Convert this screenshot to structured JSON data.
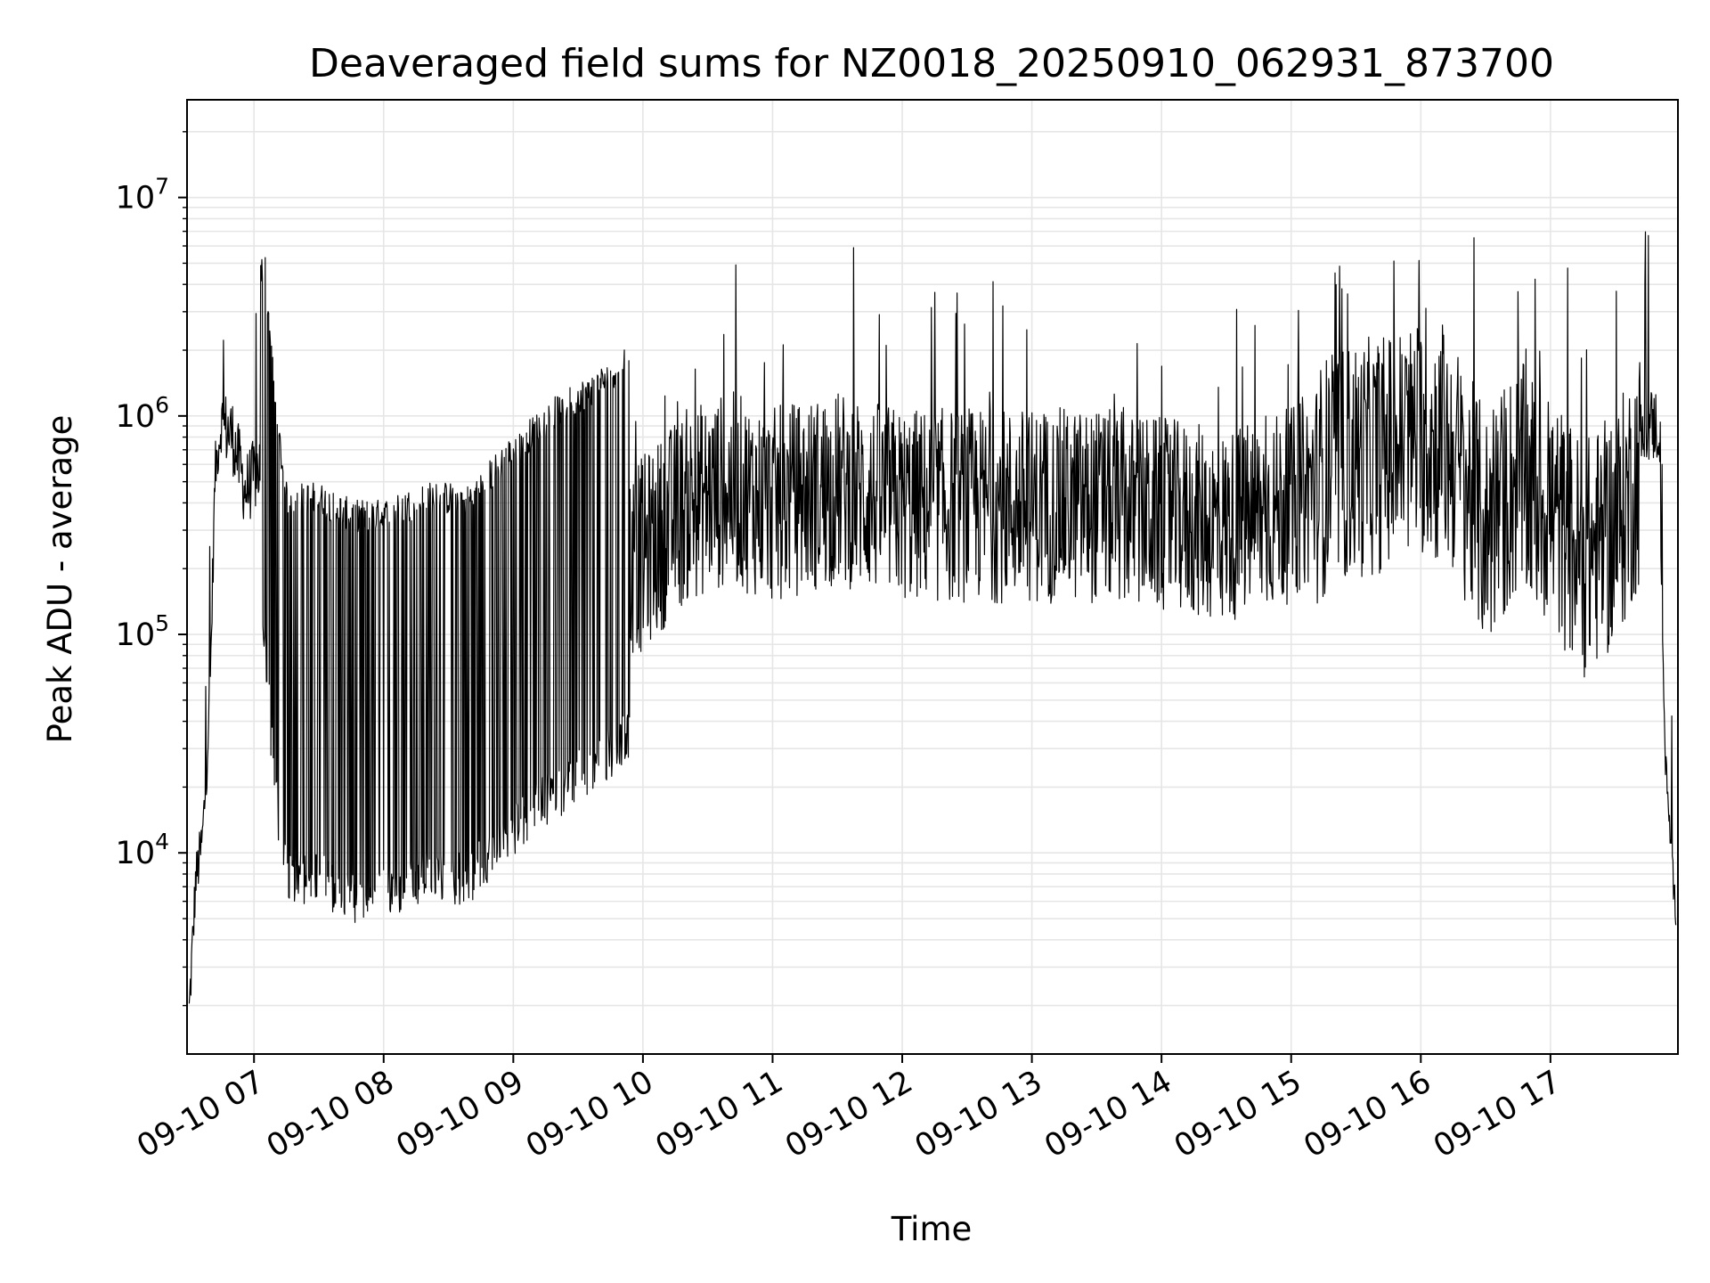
{
  "chart_data": {
    "type": "line",
    "title": "Deaveraged field sums for NZ0018_20250910_062931_873700",
    "xlabel": "Time",
    "ylabel": "Peak ADU - average",
    "yscale": "log",
    "ylim": [
      1200,
      28000000
    ],
    "xlim": [
      "09-10 06:29",
      "09-10 17:59"
    ],
    "grid": "on",
    "x_tick_labels": [
      "09-10 07",
      "09-10 08",
      "09-10 09",
      "09-10 10",
      "09-10 11",
      "09-10 12",
      "09-10 13",
      "09-10 14",
      "09-10 15",
      "09-10 16",
      "09-10 17"
    ],
    "y_tick_labels": [
      {
        "base": "10",
        "exp": "4",
        "value": 10000
      },
      {
        "base": "10",
        "exp": "5",
        "value": 100000
      },
      {
        "base": "10",
        "exp": "6",
        "value": 1000000
      },
      {
        "base": "10",
        "exp": "7",
        "value": 10000000
      }
    ],
    "line_color": "#000000",
    "grid_color": "#e6e6e6",
    "series": [
      {
        "x": [
          "09-10 06:30",
          "09-10 06:33",
          "09-10 06:36",
          "09-10 06:38",
          "09-10 06:40",
          "09-10 06:42",
          "09-10 06:45",
          "09-10 06:50",
          "09-10 06:56",
          "09-10 07:05",
          "09-10 07:10",
          "09-10 07:15",
          "09-10 07:30",
          "09-10 07:45",
          "09-10 08:00",
          "09-10 08:20",
          "09-10 08:40",
          "09-10 09:00",
          "09-10 09:20",
          "09-10 09:40",
          "09-10 10:00",
          "09-10 10:20",
          "09-10 10:40",
          "09-10 11:00",
          "09-10 11:30",
          "09-10 12:00",
          "09-10 12:30",
          "09-10 13:00",
          "09-10 13:30",
          "09-10 14:00",
          "09-10 14:30",
          "09-10 15:00",
          "09-10 15:20",
          "09-10 15:40",
          "09-10 16:00",
          "09-10 16:15",
          "09-10 16:30",
          "09-10 16:45",
          "09-10 17:00",
          "09-10 17:15",
          "09-10 17:30",
          "09-10 17:45",
          "09-10 17:50",
          "09-10 17:53",
          "09-10 17:56",
          "09-10 17:59"
        ],
        "y": [
          2000,
          8000,
          12000,
          25000,
          80000,
          600000,
          1000000,
          900000,
          500000,
          700000,
          150000,
          60000,
          60000,
          50000,
          50000,
          60000,
          60000,
          100000,
          150000,
          200000,
          300000,
          500000,
          600000,
          500000,
          600000,
          500000,
          500000,
          500000,
          500000,
          450000,
          400000,
          500000,
          800000,
          900000,
          1100000,
          900000,
          400000,
          700000,
          500000,
          300000,
          400000,
          1000000,
          1000000,
          30000,
          10000,
          4000
        ]
      }
    ]
  }
}
